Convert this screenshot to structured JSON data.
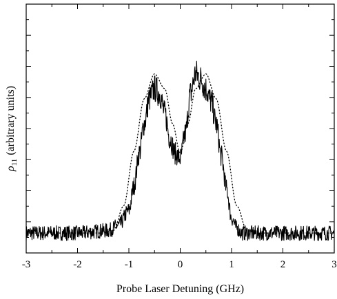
{
  "chart_data": {
    "type": "line",
    "title": "",
    "xlabel": "Probe Laser Detuning (GHz)",
    "ylabel_symbol": "ρ",
    "ylabel_subscript": "11",
    "ylabel_text": "(arbitrary units)",
    "xlim": [
      -3,
      3
    ],
    "ylim": [
      0,
      1
    ],
    "x_ticks": [
      -3,
      -2,
      -1,
      0,
      1,
      2,
      3
    ],
    "x_tick_labels": [
      "-3",
      "-2",
      "-1",
      "0",
      "1",
      "2",
      "3"
    ],
    "y_tick_labels_shown": false,
    "grid": false,
    "colors": {
      "line": "#000000",
      "axes": "#000000",
      "background": "#ffffff"
    },
    "series": [
      {
        "style": "solid-noisy",
        "x": [
          -3.0,
          -2.0,
          -1.4,
          -1.2,
          -1.0,
          -0.9,
          -0.8,
          -0.7,
          -0.6,
          -0.5,
          -0.4,
          -0.3,
          -0.2,
          -0.1,
          0.0,
          0.1,
          0.2,
          0.3,
          0.4,
          0.5,
          0.6,
          0.7,
          0.8,
          0.9,
          1.0,
          1.1,
          1.2,
          1.5,
          2.0,
          3.0
        ],
        "values": [
          0.08,
          0.08,
          0.09,
          0.11,
          0.17,
          0.27,
          0.4,
          0.52,
          0.62,
          0.66,
          0.64,
          0.56,
          0.46,
          0.4,
          0.38,
          0.48,
          0.64,
          0.72,
          0.7,
          0.66,
          0.61,
          0.52,
          0.39,
          0.26,
          0.14,
          0.1,
          0.08,
          0.08,
          0.08,
          0.08
        ],
        "noise_amplitude": 0.03
      },
      {
        "style": "dotted",
        "x": [
          -3.0,
          -1.5,
          -1.3,
          -1.1,
          -0.9,
          -0.7,
          -0.5,
          -0.3,
          -0.15,
          0.0,
          0.15,
          0.3,
          0.5,
          0.7,
          0.9,
          1.1,
          1.3,
          1.5,
          3.0
        ],
        "values": [
          0.08,
          0.08,
          0.09,
          0.19,
          0.41,
          0.62,
          0.72,
          0.66,
          0.52,
          0.4,
          0.52,
          0.66,
          0.72,
          0.62,
          0.41,
          0.19,
          0.09,
          0.08,
          0.08
        ]
      }
    ]
  }
}
